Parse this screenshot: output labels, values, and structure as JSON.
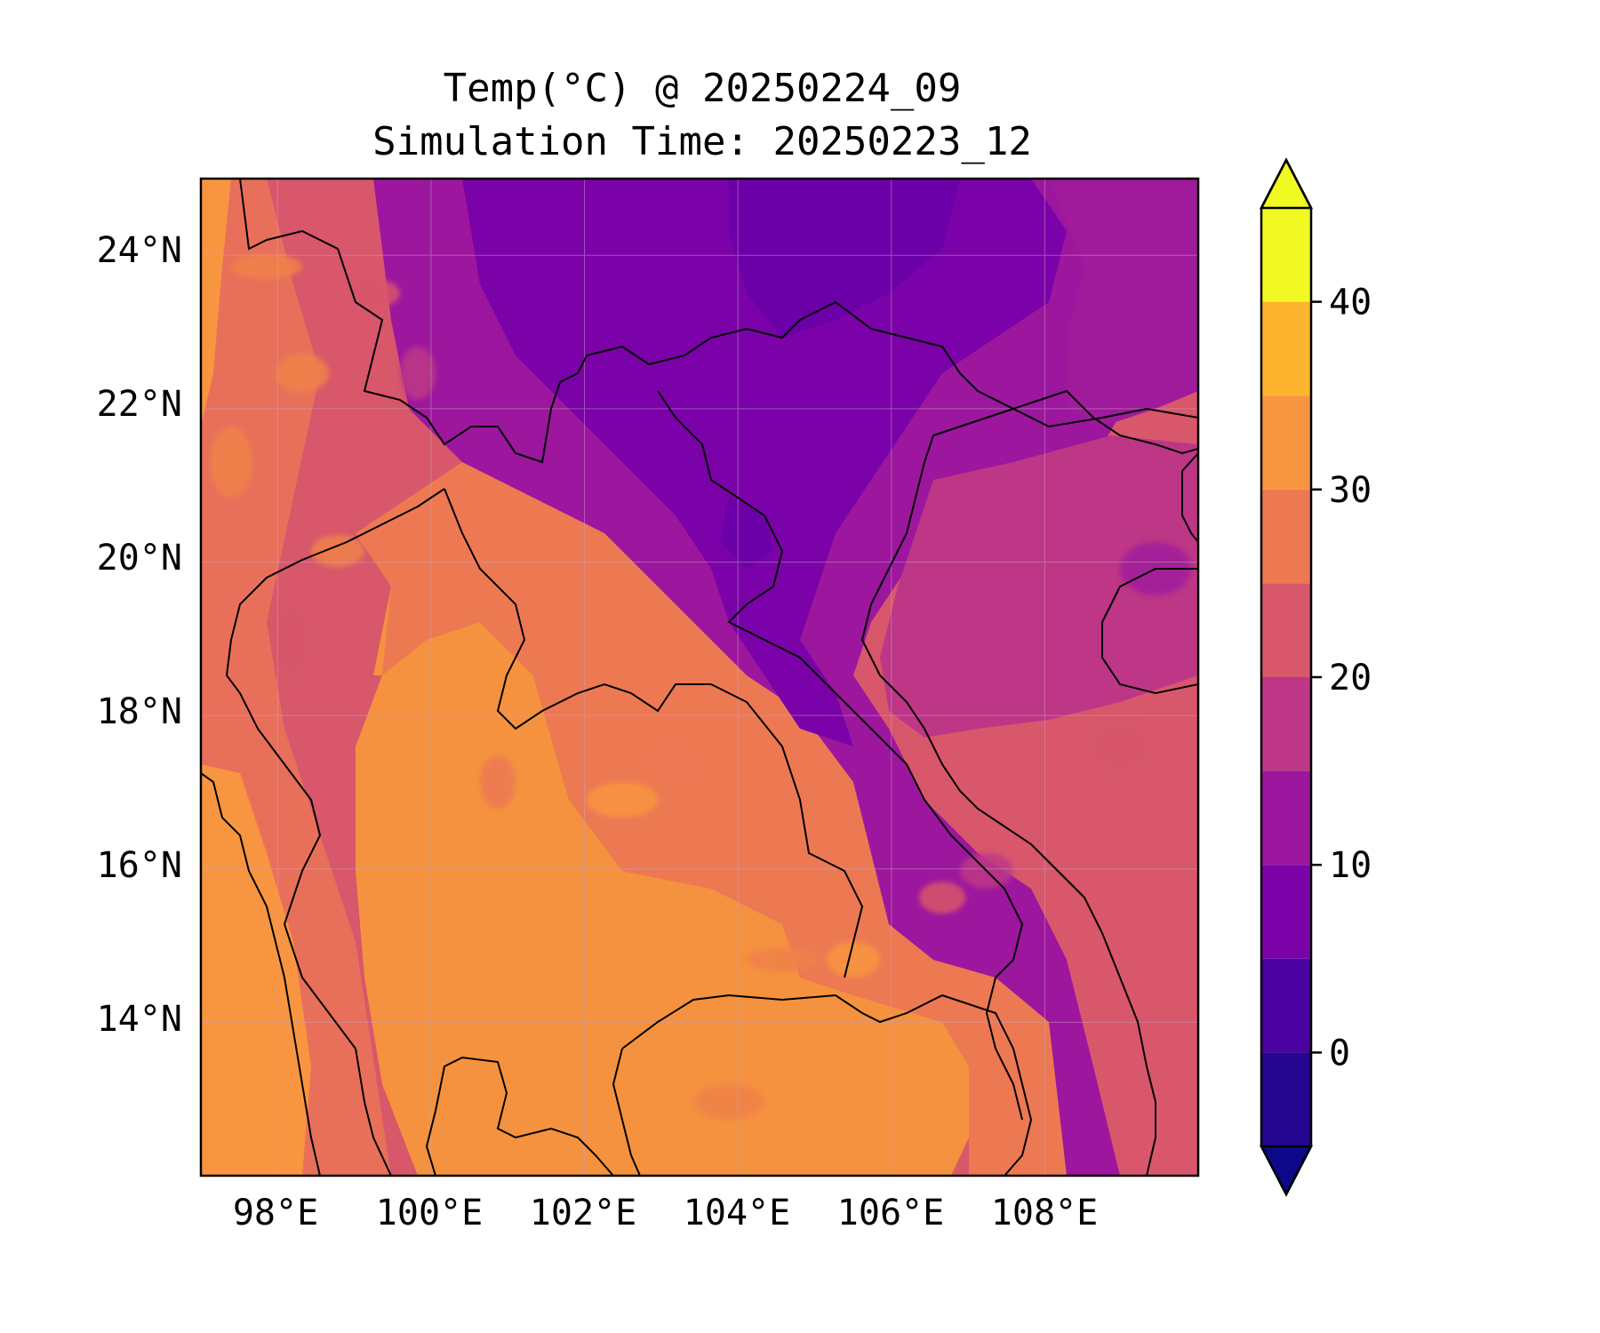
{
  "title": {
    "line1": "Temp(°C) @ 20250224_09",
    "line2": "Simulation Time: 20250223_12"
  },
  "map": {
    "lon_range": [
      97,
      110
    ],
    "lat_range": [
      12,
      25
    ],
    "x_ticks": [
      "98°E",
      "100°E",
      "102°E",
      "104°E",
      "106°E",
      "108°E"
    ],
    "x_tick_values": [
      98,
      100,
      102,
      104,
      106,
      108
    ],
    "y_ticks": [
      "24°N",
      "22°N",
      "20°N",
      "18°N",
      "16°N",
      "14°N"
    ],
    "y_tick_values": [
      24,
      22,
      20,
      18,
      16,
      14
    ],
    "gridlines": true,
    "dominant_fills": {
      "north_highlands": "#7a02a8",
      "north_periphery": "#9c179e",
      "coast_and_sea": "#bd3786",
      "central_plain": "#f0824a",
      "lowlands": "#e16462"
    }
  },
  "colorbar": {
    "label_values": [
      "40",
      "30",
      "20",
      "10",
      "0"
    ],
    "extend": "both",
    "range": [
      -5,
      45
    ],
    "levels": [
      -5,
      0,
      5,
      10,
      15,
      20,
      25,
      30,
      35,
      40,
      45
    ],
    "colors": [
      "#240691",
      "#4a02a0",
      "#7a02a8",
      "#9c179e",
      "#bd3786",
      "#d8576b",
      "#ed7953",
      "#f89540",
      "#fdb42f",
      "#f0f921"
    ],
    "under_color": "#0d0887",
    "over_color": "#f0f921"
  }
}
